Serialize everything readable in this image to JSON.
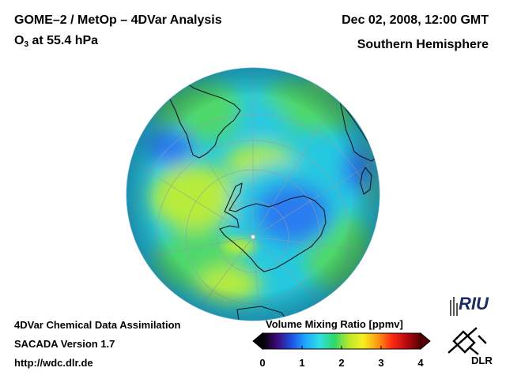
{
  "header": {
    "title": "GOME–2 / MetOp – 4DVar Analysis",
    "datetime": "Dec 02, 2008, 12:00 GMT",
    "species_prefix": "O",
    "species_subscript": "3",
    "species_suffix": " at 55.4 hPa",
    "hemisphere": "Southern Hemisphere"
  },
  "footer": {
    "line1": "4DVar Chemical Data Assimilation",
    "line2": "SACADA Version 1.7",
    "line3": "http://wdc.dlr.de"
  },
  "colorbar": {
    "title": "Volume Mixing Ratio [ppmv]",
    "min": 0,
    "max": 4,
    "ticks": [
      "0",
      "1",
      "2",
      "3",
      "4"
    ],
    "colors": [
      "#000000",
      "#3c0a78",
      "#1f4fe0",
      "#1fa8ff",
      "#2ee0e0",
      "#2fd86a",
      "#b8e82a",
      "#f5f020",
      "#ff9a10",
      "#ff2a10",
      "#b80a10",
      "#5a0000"
    ]
  },
  "map": {
    "projection": "orthographic south pole",
    "field_colors": {
      "low": "#2a7cf0",
      "mid": "#25c8e0",
      "high": "#4fd86c",
      "peak": "#b8ec3a"
    }
  },
  "logos": {
    "riu": "RIU",
    "dlr": "DLR"
  }
}
